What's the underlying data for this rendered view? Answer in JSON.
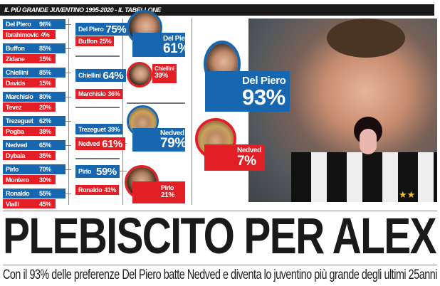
{
  "header": {
    "title": "IL PIÙ GRANDE JUVENTINO 1995-2020 - IL TABELLONE"
  },
  "colors": {
    "blue": "#1667b0",
    "red": "#e31e25",
    "header_bg": "#1a1a1a"
  },
  "round1": [
    {
      "a": {
        "name": "Del Piero",
        "pct": "96%"
      },
      "b": {
        "name": "Ibrahimovic",
        "pct": "4%"
      }
    },
    {
      "a": {
        "name": "Buffon",
        "pct": "85%"
      },
      "b": {
        "name": "Zidane",
        "pct": "15%"
      }
    },
    {
      "a": {
        "name": "Chiellini",
        "pct": "85%"
      },
      "b": {
        "name": "Davids",
        "pct": "15%"
      }
    },
    {
      "a": {
        "name": "Marchisio",
        "pct": "80%"
      },
      "b": {
        "name": "Tevez",
        "pct": "20%"
      }
    },
    {
      "a": {
        "name": "Trezeguet",
        "pct": "62%"
      },
      "b": {
        "name": "Pogba",
        "pct": "38%"
      }
    },
    {
      "a": {
        "name": "Nedved",
        "pct": "65%"
      },
      "b": {
        "name": "Dybala",
        "pct": "35%"
      }
    },
    {
      "a": {
        "name": "Pirlo",
        "pct": "70%"
      },
      "b": {
        "name": "Montero",
        "pct": "30%"
      }
    },
    {
      "a": {
        "name": "Ronaldo",
        "pct": "55%"
      },
      "b": {
        "name": "Vialli",
        "pct": "45%"
      }
    }
  ],
  "round2": [
    {
      "a": {
        "name": "Del Piero",
        "pct": "75%"
      },
      "b": {
        "name": "Buffon",
        "pct": "25%"
      }
    },
    {
      "a": {
        "name": "Chiellini",
        "pct": "64%"
      },
      "b": {
        "name": "Marchisio",
        "pct": "36%"
      }
    },
    {
      "a": {
        "name": "Trezeguet",
        "pct": "39%"
      },
      "b": {
        "name": "Nedved",
        "pct": "61%"
      }
    },
    {
      "a": {
        "name": "Pirlo",
        "pct": "59%"
      },
      "b": {
        "name": "Ronaldo",
        "pct": "41%"
      }
    }
  ],
  "semifinal": [
    {
      "name": "Del Piero",
      "pct": "61%"
    },
    {
      "name": "Chiellini",
      "pct": "39%"
    },
    {
      "name": "Nedved",
      "pct": "79%"
    },
    {
      "name": "Pirlo",
      "pct": "21%"
    }
  ],
  "final": [
    {
      "name": "Del Piero",
      "pct": "93%"
    },
    {
      "name": "Nedved",
      "pct": "7%"
    }
  ],
  "headline": "PLEBISCITO PER ALEX",
  "subtitle": "Con il 93% delle preferenze Del Piero batte Nedved e diventa lo juventino più grande degli ultimi 25anni"
}
